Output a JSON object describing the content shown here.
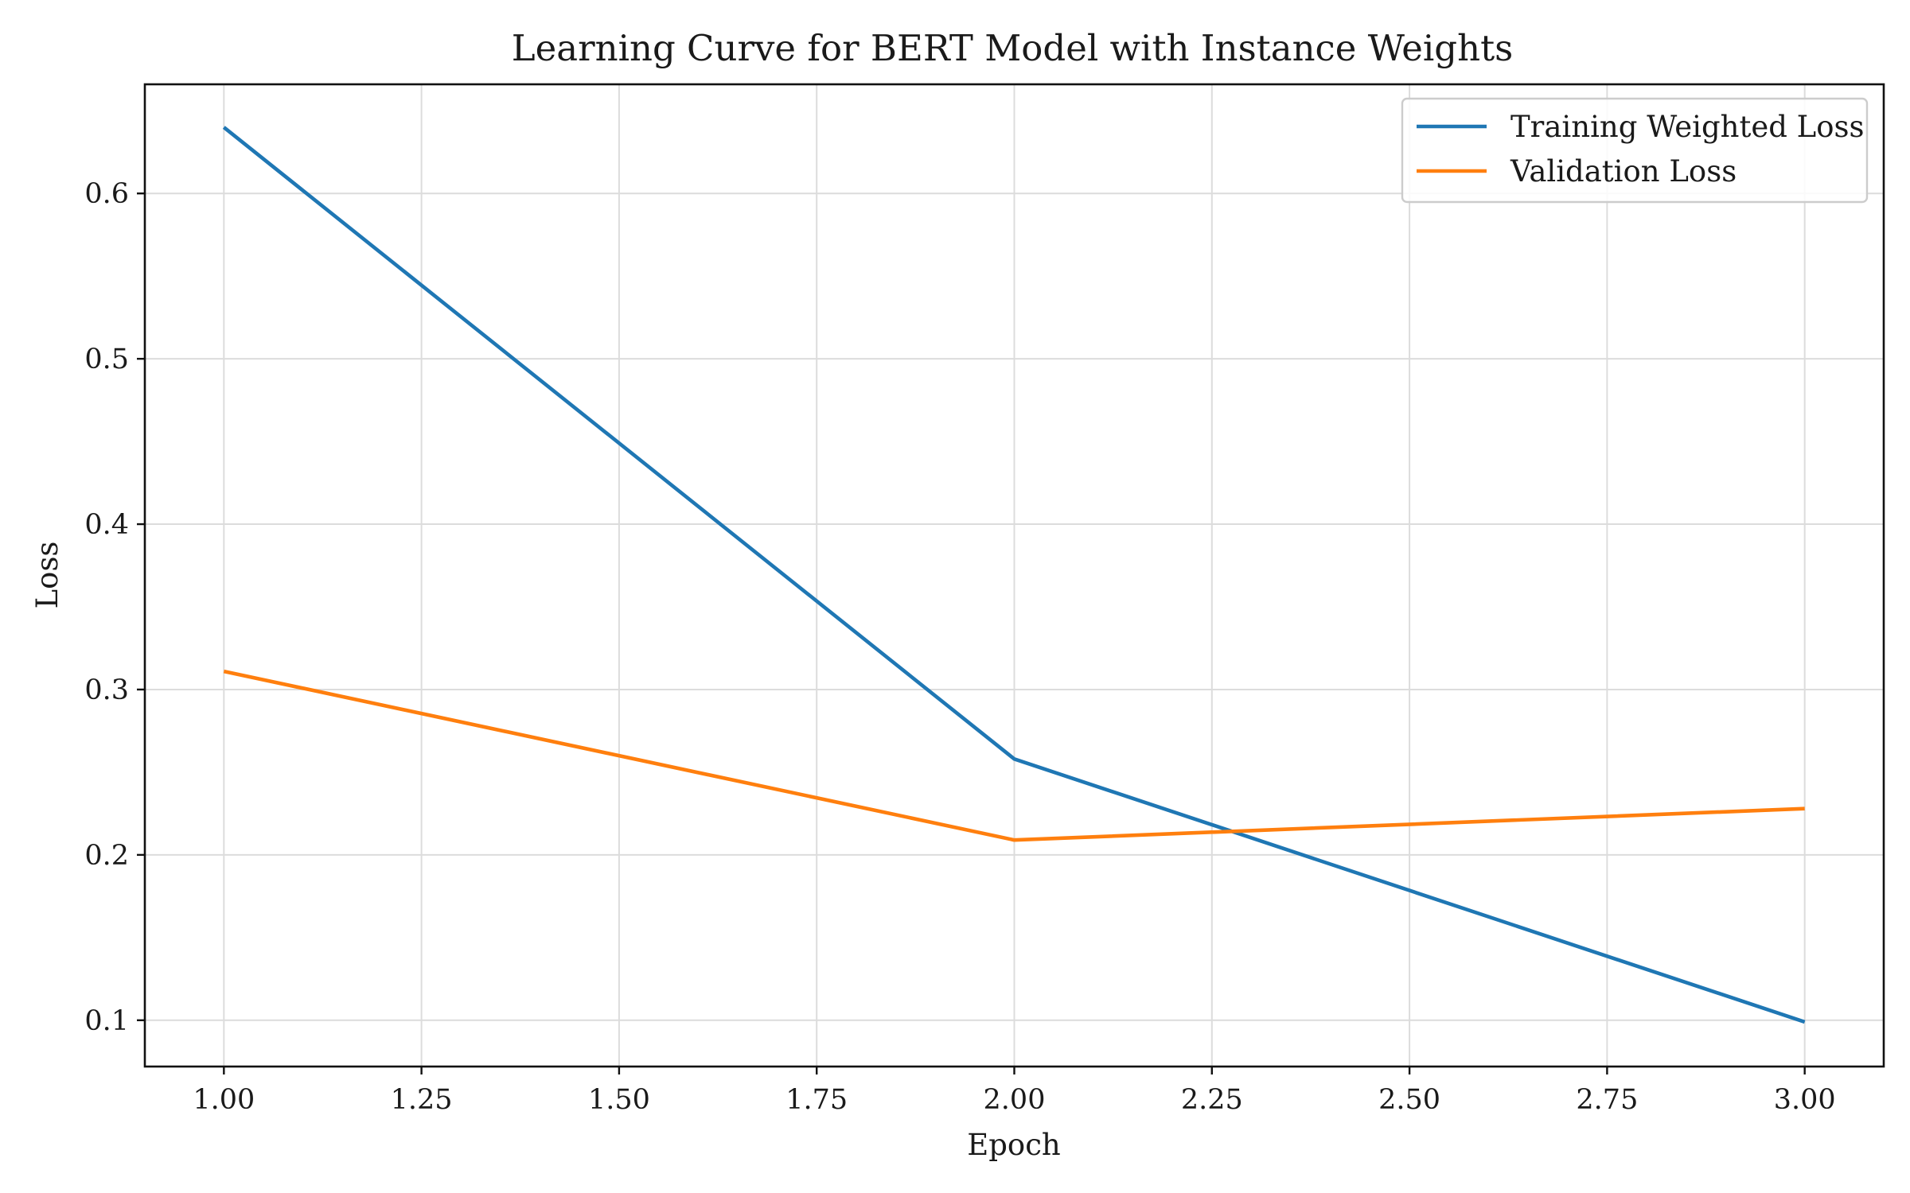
{
  "chart_data": {
    "type": "line",
    "title": "Learning Curve for BERT Model with Instance Weights",
    "xlabel": "Epoch",
    "ylabel": "Loss",
    "x": [
      1,
      2,
      3
    ],
    "xlim": [
      0.9,
      3.1
    ],
    "ylim": [
      0.072,
      0.666
    ],
    "xticks": [
      1.0,
      1.25,
      1.5,
      1.75,
      2.0,
      2.25,
      2.5,
      2.75,
      3.0
    ],
    "xtick_labels": [
      "1.00",
      "1.25",
      "1.50",
      "1.75",
      "2.00",
      "2.25",
      "2.50",
      "2.75",
      "3.00"
    ],
    "yticks": [
      0.1,
      0.2,
      0.3,
      0.4,
      0.5,
      0.6
    ],
    "ytick_labels": [
      "0.1",
      "0.2",
      "0.3",
      "0.4",
      "0.5",
      "0.6"
    ],
    "grid": true,
    "legend_position": "top-right",
    "series": [
      {
        "name": "Training Weighted Loss",
        "color": "#1f77b4",
        "values": [
          0.64,
          0.258,
          0.099
        ]
      },
      {
        "name": "Validation Loss",
        "color": "#ff7f0e",
        "values": [
          0.311,
          0.209,
          0.228
        ]
      }
    ]
  }
}
